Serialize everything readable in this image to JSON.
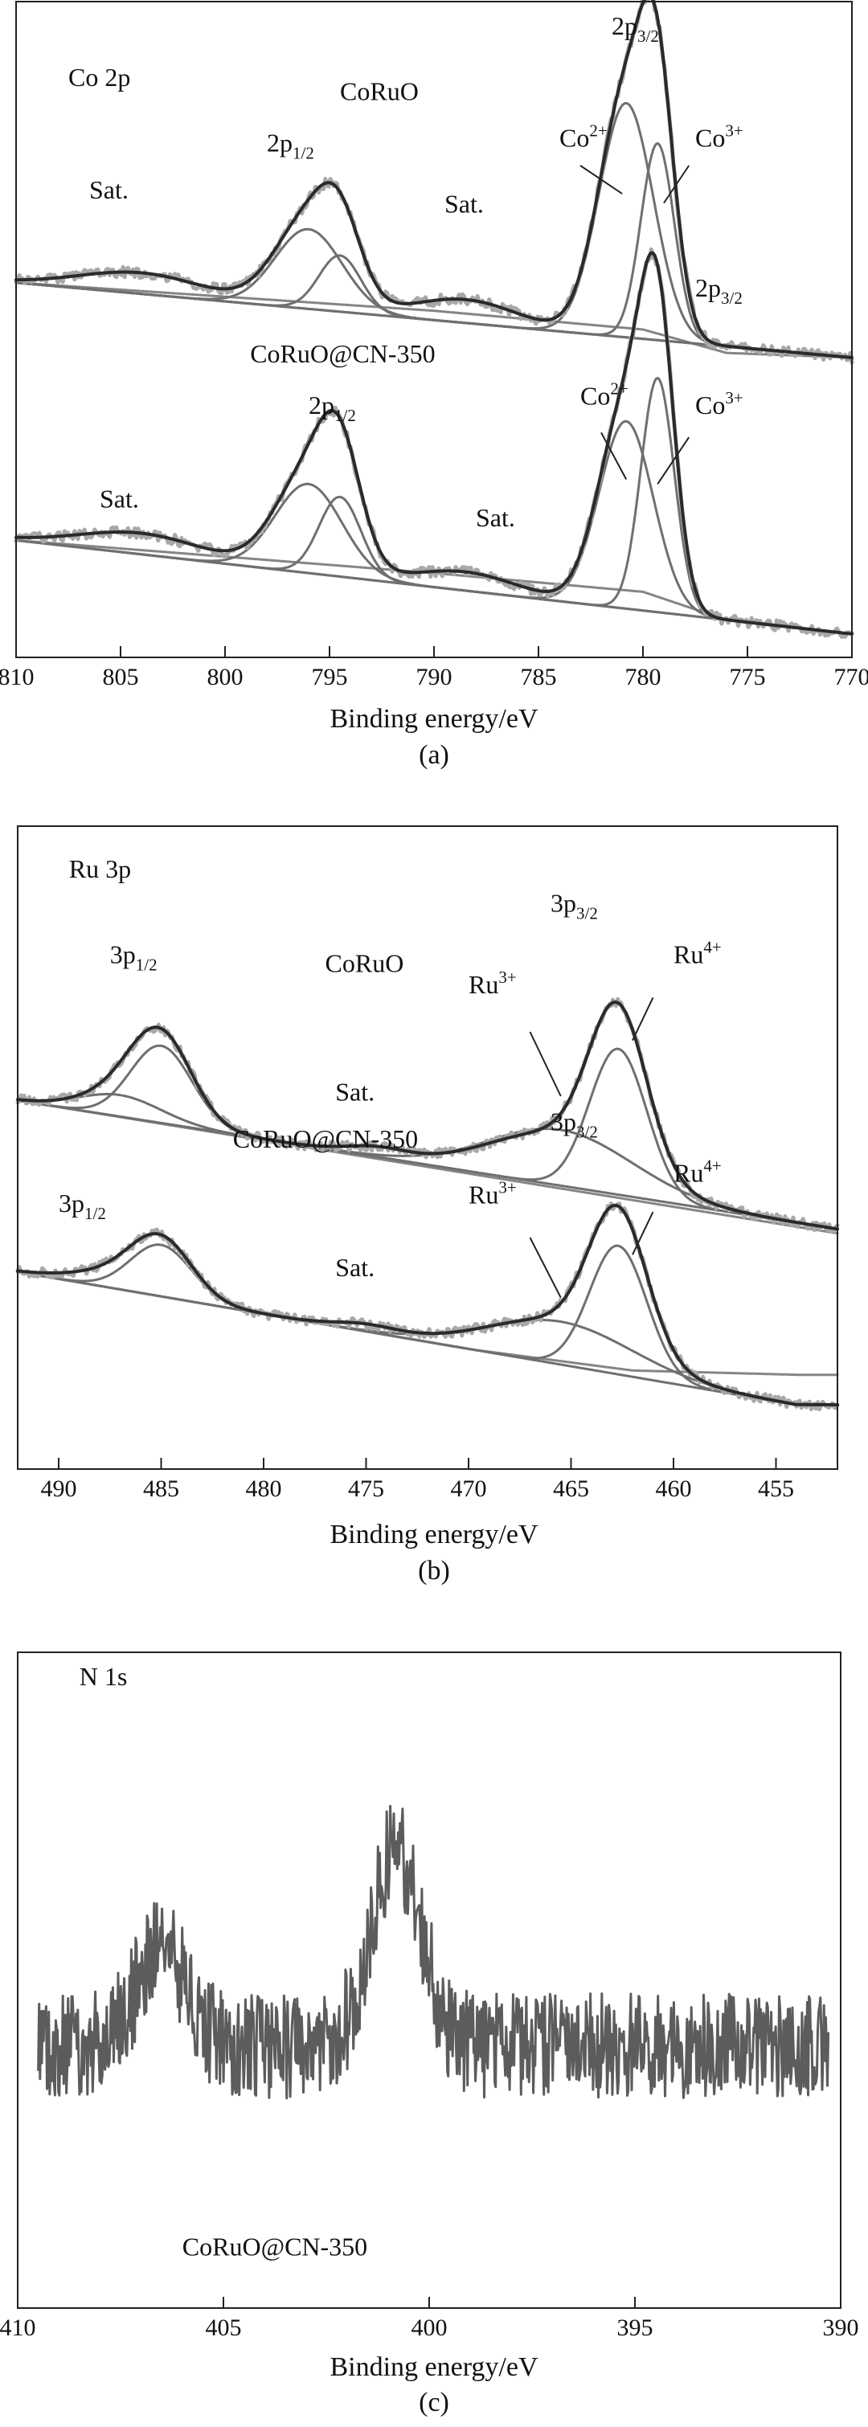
{
  "chart_data": [
    {
      "type": "line",
      "id": "a",
      "caption": "(a)",
      "xlabel": "Binding energy/eV",
      "xlim": [
        810,
        770
      ],
      "xticks": [
        810,
        805,
        800,
        795,
        790,
        785,
        780,
        775,
        770
      ],
      "panel_label": "Co 2p",
      "y_axis_labels": false,
      "curves": [
        {
          "group": "CoRuO",
          "role": "measured",
          "baseline": [
            [
              810,
              0.8
            ],
            [
              770,
              0.64
            ]
          ],
          "peaks": [
            [
              804,
              0.045,
              3.0
            ],
            [
              796,
              0.19,
              1.6
            ],
            [
              794.5,
              0.13,
              1.0
            ],
            [
              788.5,
              0.05,
              2.5
            ],
            [
              780.8,
              0.52,
              1.3
            ],
            [
              779.3,
              0.42,
              0.8
            ]
          ]
        },
        {
          "group": "CoRuO",
          "role": "fit",
          "baseline": [
            [
              810,
              0.8
            ],
            [
              770,
              0.64
            ]
          ],
          "peaks": [
            [
              796,
              0.17,
              1.6
            ]
          ]
        },
        {
          "group": "CoRuO",
          "role": "fit",
          "baseline": [
            [
              810,
              0.8
            ],
            [
              770,
              0.64
            ]
          ],
          "peaks": [
            [
              794.5,
              0.12,
              1.0
            ]
          ]
        },
        {
          "group": "CoRuO",
          "role": "fit",
          "baseline": [
            [
              810,
              0.8
            ],
            [
              770,
              0.64
            ]
          ],
          "peaks": [
            [
              780.8,
              0.5,
              1.3
            ]
          ]
        },
        {
          "group": "CoRuO",
          "role": "fit",
          "baseline": [
            [
              810,
              0.8
            ],
            [
              770,
              0.64
            ]
          ],
          "peaks": [
            [
              779.3,
              0.42,
              0.8
            ]
          ]
        },
        {
          "group": "CoRuO",
          "role": "background",
          "baseline": [
            [
              810,
              0.8
            ],
            [
              790,
              0.74
            ],
            [
              780,
              0.7
            ],
            [
              776,
              0.65
            ],
            [
              770,
              0.64
            ]
          ],
          "peaks": []
        },
        {
          "group": "CoRuO@CN-350",
          "role": "measured",
          "baseline": [
            [
              810,
              0.25
            ],
            [
              770,
              0.05
            ]
          ],
          "peaks": [
            [
              804,
              0.045,
              3.0
            ],
            [
              796,
              0.21,
              1.6
            ],
            [
              794.5,
              0.2,
              1.0
            ],
            [
              788.5,
              0.04,
              2.5
            ],
            [
              780.8,
              0.43,
              1.3
            ],
            [
              779.3,
              0.52,
              0.8
            ]
          ]
        },
        {
          "group": "CoRuO@CN-350",
          "role": "fit",
          "baseline": [
            [
              810,
              0.25
            ],
            [
              770,
              0.05
            ]
          ],
          "peaks": [
            [
              796,
              0.19,
              1.6
            ]
          ]
        },
        {
          "group": "CoRuO@CN-350",
          "role": "fit",
          "baseline": [
            [
              810,
              0.25
            ],
            [
              770,
              0.05
            ]
          ],
          "peaks": [
            [
              794.5,
              0.17,
              1.0
            ]
          ]
        },
        {
          "group": "CoRuO@CN-350",
          "role": "fit",
          "baseline": [
            [
              810,
              0.25
            ],
            [
              770,
              0.05
            ]
          ],
          "peaks": [
            [
              780.8,
              0.4,
              1.3
            ]
          ]
        },
        {
          "group": "CoRuO@CN-350",
          "role": "fit",
          "baseline": [
            [
              810,
              0.25
            ],
            [
              770,
              0.05
            ]
          ],
          "peaks": [
            [
              779.3,
              0.5,
              0.8
            ]
          ]
        },
        {
          "group": "CoRuO@CN-350",
          "role": "background",
          "baseline": [
            [
              810,
              0.25
            ],
            [
              790,
              0.18
            ],
            [
              780,
              0.14
            ],
            [
              776,
              0.08
            ],
            [
              770,
              0.05
            ]
          ],
          "peaks": []
        }
      ],
      "annotations": [
        {
          "text": "Co 2p",
          "sup": "",
          "sub": "",
          "x": 807.5,
          "y": 1.22
        },
        {
          "text": "CoRuO",
          "sup": "",
          "sub": "",
          "x": 794.5,
          "y": 1.19
        },
        {
          "text": "2p",
          "sup": "",
          "sub": "3/2",
          "x": 781.5,
          "y": 1.33
        },
        {
          "text": "2p",
          "sup": "",
          "sub": "1/2",
          "x": 798.0,
          "y": 1.08
        },
        {
          "text": "Sat.",
          "sup": "",
          "sub": "",
          "x": 806.5,
          "y": 0.98
        },
        {
          "text": "Sat.",
          "sup": "",
          "sub": "",
          "x": 789.5,
          "y": 0.95
        },
        {
          "text": "Co",
          "sup": "2+",
          "sub": "",
          "x": 784.0,
          "y": 1.09
        },
        {
          "text": "Co",
          "sup": "3+",
          "sub": "",
          "x": 777.5,
          "y": 1.09
        },
        {
          "text": "CoRuO@CN-350",
          "sup": "",
          "sub": "",
          "x": 798.8,
          "y": 0.63
        },
        {
          "text": "2p",
          "sup": "",
          "sub": "3/2",
          "x": 777.5,
          "y": 0.77
        },
        {
          "text": "2p",
          "sup": "",
          "sub": "1/2",
          "x": 796.0,
          "y": 0.52
        },
        {
          "text": "Sat.",
          "sup": "",
          "sub": "",
          "x": 806.0,
          "y": 0.32
        },
        {
          "text": "Sat.",
          "sup": "",
          "sub": "",
          "x": 788.0,
          "y": 0.28
        },
        {
          "text": "Co",
          "sup": "2+",
          "sub": "",
          "x": 783.0,
          "y": 0.54
        },
        {
          "text": "Co",
          "sup": "3+",
          "sub": "",
          "x": 777.5,
          "y": 0.52
        }
      ],
      "leaders": [
        [
          [
            783.0,
            1.05
          ],
          [
            781.0,
            0.99
          ]
        ],
        [
          [
            777.8,
            1.05
          ],
          [
            779.0,
            0.97
          ]
        ],
        [
          [
            782.0,
            0.48
          ],
          [
            780.8,
            0.38
          ]
        ],
        [
          [
            777.8,
            0.47
          ],
          [
            779.3,
            0.37
          ]
        ]
      ]
    },
    {
      "type": "line",
      "id": "b",
      "caption": "(b)",
      "xlabel": "Binding energy/eV",
      "xlim": [
        492,
        452
      ],
      "xticks": [
        490,
        485,
        480,
        475,
        470,
        465,
        460,
        455
      ],
      "panel_label": "Ru 3p",
      "y_axis_labels": false,
      "curves": [
        {
          "group": "CoRuO",
          "role": "measured",
          "baseline": [
            [
              492,
              0.66
            ],
            [
              452,
              0.36
            ]
          ],
          "peaks": [
            [
              487,
              0.05,
              2.0
            ],
            [
              485,
              0.19,
              1.5
            ],
            [
              474.5,
              0.02,
              1.5
            ],
            [
              465.5,
              0.12,
              3.5
            ],
            [
              462.7,
              0.36,
              1.4
            ]
          ]
        },
        {
          "group": "CoRuO",
          "role": "fit",
          "baseline": [
            [
              492,
              0.66
            ],
            [
              452,
              0.36
            ]
          ],
          "peaks": [
            [
              485,
              0.18,
              1.5
            ]
          ]
        },
        {
          "group": "CoRuO",
          "role": "fit",
          "baseline": [
            [
              492,
              0.66
            ],
            [
              452,
              0.36
            ]
          ],
          "peaks": [
            [
              462.7,
              0.34,
              1.4
            ]
          ]
        },
        {
          "group": "CoRuO",
          "role": "fit",
          "baseline": [
            [
              492,
              0.66
            ],
            [
              452,
              0.36
            ]
          ],
          "peaks": [
            [
              487,
              0.05,
              2.0
            ],
            [
              465.5,
              0.13,
              3.5
            ]
          ]
        },
        {
          "group": "CoRuO",
          "role": "background",
          "baseline": [
            [
              492,
              0.66
            ],
            [
              452,
              0.35
            ]
          ],
          "peaks": []
        },
        {
          "group": "CoRuO@CN-350",
          "role": "measured",
          "baseline": [
            [
              492,
              0.26
            ],
            [
              454,
              -0.05
            ]
          ],
          "peaks": [
            [
              487.5,
              0.03,
              2.0
            ],
            [
              485,
              0.13,
              1.5
            ],
            [
              475,
              0.015,
              1.5
            ],
            [
              465.5,
              0.1,
              3.5
            ],
            [
              462.7,
              0.32,
              1.4
            ]
          ]
        },
        {
          "group": "CoRuO@CN-350",
          "role": "fit",
          "baseline": [
            [
              492,
              0.26
            ],
            [
              454,
              -0.05
            ]
          ],
          "peaks": [
            [
              485,
              0.12,
              1.5
            ]
          ]
        },
        {
          "group": "CoRuO@CN-350",
          "role": "fit",
          "baseline": [
            [
              492,
              0.26
            ],
            [
              454,
              -0.05
            ]
          ],
          "peaks": [
            [
              462.7,
              0.3,
              1.4
            ]
          ]
        },
        {
          "group": "CoRuO@CN-350",
          "role": "fit",
          "baseline": [
            [
              492,
              0.26
            ],
            [
              454,
              -0.05
            ]
          ],
          "peaks": [
            [
              465.5,
              0.1,
              3.5
            ]
          ]
        },
        {
          "group": "CoRuO@CN-350",
          "role": "background",
          "baseline": [
            [
              492,
              0.26
            ],
            [
              470,
              0.08
            ],
            [
              462,
              0.03
            ],
            [
              454,
              0.02
            ]
          ],
          "peaks": []
        }
      ],
      "annotations": [
        {
          "text": "Ru 3p",
          "sup": "",
          "sub": "",
          "x": 489.5,
          "y": 1.18
        },
        {
          "text": "3p",
          "sup": "",
          "sub": "1/2",
          "x": 487.5,
          "y": 0.98
        },
        {
          "text": "CoRuO",
          "sup": "",
          "sub": "",
          "x": 477.0,
          "y": 0.96
        },
        {
          "text": "3p",
          "sup": "",
          "sub": "3/2",
          "x": 466.0,
          "y": 1.1
        },
        {
          "text": "Ru",
          "sup": "3+",
          "sub": "",
          "x": 470.0,
          "y": 0.91
        },
        {
          "text": "Ru",
          "sup": "4+",
          "sub": "",
          "x": 460.0,
          "y": 0.98
        },
        {
          "text": "Sat.",
          "sup": "",
          "sub": "",
          "x": 476.5,
          "y": 0.66
        },
        {
          "text": "CoRuO@CN-350",
          "sup": "",
          "sub": "",
          "x": 481.5,
          "y": 0.55
        },
        {
          "text": "3p",
          "sup": "",
          "sub": "3/2",
          "x": 466.0,
          "y": 0.59
        },
        {
          "text": "3p",
          "sup": "",
          "sub": "1/2",
          "x": 490.0,
          "y": 0.4
        },
        {
          "text": "Ru",
          "sup": "3+",
          "sub": "",
          "x": 470.0,
          "y": 0.42
        },
        {
          "text": "Ru",
          "sup": "4+",
          "sub": "",
          "x": 460.0,
          "y": 0.47
        },
        {
          "text": "Sat.",
          "sup": "",
          "sub": "",
          "x": 476.5,
          "y": 0.25
        }
      ],
      "leaders": [
        [
          [
            467.0,
            0.82
          ],
          [
            465.5,
            0.67
          ]
        ],
        [
          [
            461.0,
            0.9
          ],
          [
            462.0,
            0.8
          ]
        ],
        [
          [
            467.0,
            0.34
          ],
          [
            465.5,
            0.2
          ]
        ],
        [
          [
            461.0,
            0.4
          ],
          [
            462.0,
            0.3
          ]
        ]
      ]
    },
    {
      "type": "line",
      "id": "c",
      "caption": "(c)",
      "xlabel": "Binding energy/eV",
      "xlim": [
        410,
        390
      ],
      "xticks": [
        410,
        405,
        400,
        395,
        390
      ],
      "panel_label": "N 1s",
      "sample_label": "CoRuO@CN-350",
      "y_axis_labels": false,
      "curves": [
        {
          "group": "CoRuO@CN-350",
          "role": "measured",
          "noisy": true,
          "x_start": 409.5,
          "x_end": 390.3,
          "baseline": [
            [
              409.5,
              0.4
            ],
            [
              390.3,
              0.4
            ]
          ],
          "peaks": [
            [
              406.5,
              0.15,
              0.6
            ],
            [
              400.8,
              0.3,
              0.6
            ]
          ]
        }
      ],
      "annotations": [
        {
          "text": "N 1s",
          "sup": "",
          "sub": "",
          "x": 408.5,
          "y": 0.95
        },
        {
          "text": "CoRuO@CN-350",
          "sup": "",
          "sub": "",
          "x": 406.0,
          "y": 0.08
        }
      ],
      "leaders": []
    }
  ],
  "colors": {
    "measured": "#2a2a2a",
    "fit": "#6f6f6f",
    "background": "#858585",
    "raw_light": "#a8a8a8",
    "noisy": "#5c5c5c",
    "axis": "#222222"
  }
}
